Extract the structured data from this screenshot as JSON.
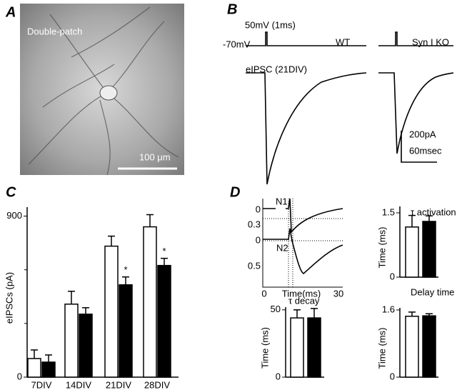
{
  "panels": {
    "A": {
      "label": "A",
      "caption": "Double-patch",
      "scale_bar": "100 μm"
    },
    "B": {
      "label": "B",
      "stimulus": "50mV (1ms)",
      "holding": "-70mV",
      "wt": "WT",
      "ko": "Syn I KO",
      "trace_title": "eIPSC (21DIV)",
      "scale_current": "200pA",
      "scale_time": "60msec"
    },
    "C": {
      "label": "C"
    },
    "D": {
      "label": "D",
      "inset": {
        "n1": "N1",
        "n2": "N2",
        "tick_labels": [
          "0",
          "0.3",
          "0",
          "0.5",
          "0",
          "30"
        ],
        "x_label": "Time(ms)"
      }
    }
  },
  "chart_data": [
    {
      "type": "bar",
      "y_label": "eIPSCs (pA)",
      "categories": [
        "7DIV",
        "14DIV",
        "21DIV",
        "28DIV"
      ],
      "ylim": [
        0,
        950
      ],
      "yticks": [
        0,
        900
      ],
      "minor_yticks": [
        300,
        600
      ],
      "series": [
        {
          "color": "#ffffff",
          "values": [
            104,
            408,
            732,
            840
          ],
          "errors": [
            48,
            72,
            56,
            68
          ]
        },
        {
          "color": "#000000",
          "values": [
            84,
            352,
            516,
            624
          ],
          "errors": [
            40,
            36,
            44,
            40
          ]
        }
      ],
      "annotations": [
        {
          "text": "*",
          "at": "21DIV"
        },
        {
          "text": "*",
          "at": "28DIV"
        }
      ]
    },
    {
      "type": "bar",
      "title": "τ activation",
      "y_label": "Time (ms)",
      "categories": [
        null
      ],
      "ylim": [
        0,
        1.65
      ],
      "yticks": [
        0,
        1.5
      ],
      "series": [
        {
          "color": "#ffffff",
          "values": [
            1.17
          ],
          "errors": [
            0.27
          ]
        },
        {
          "color": "#000000",
          "values": [
            1.3
          ],
          "errors": [
            0.13
          ]
        }
      ]
    },
    {
      "type": "bar",
      "title": "τ decay",
      "y_label": "Time (ms)",
      "categories": [
        null
      ],
      "ylim": [
        0,
        52
      ],
      "yticks": [
        0,
        50
      ],
      "series": [
        {
          "color": "#ffffff",
          "values": [
            44
          ],
          "errors": [
            6
          ]
        },
        {
          "color": "#000000",
          "values": [
            44
          ],
          "errors": [
            7
          ]
        }
      ]
    },
    {
      "type": "bar",
      "title": "Delay time",
      "y_label": "Time (ms)",
      "categories": [
        null
      ],
      "ylim": [
        0,
        1.65
      ],
      "yticks": [
        0,
        1.6
      ],
      "series": [
        {
          "color": "#ffffff",
          "values": [
            1.45
          ],
          "errors": [
            0.1
          ]
        },
        {
          "color": "#000000",
          "values": [
            1.46
          ],
          "errors": [
            0.05
          ]
        }
      ]
    }
  ]
}
